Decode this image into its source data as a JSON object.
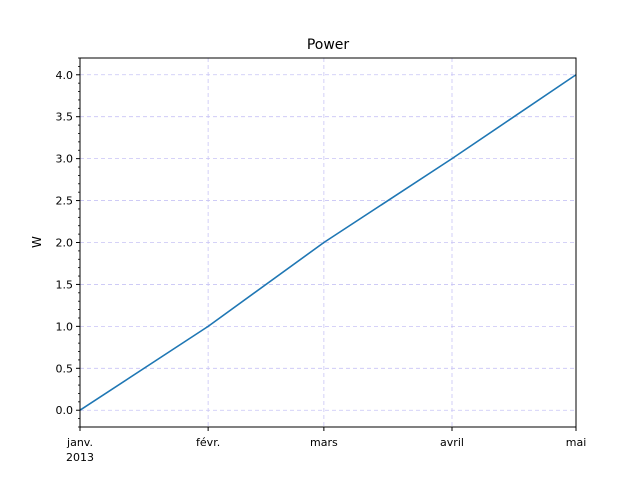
{
  "chart_data": {
    "type": "line",
    "title": "Power",
    "xlabel": "",
    "ylabel": "W",
    "x": [
      "2013-01-01",
      "2013-02-01",
      "2013-03-01",
      "2013-04-01",
      "2013-05-01"
    ],
    "x_tick_labels": [
      "janv.",
      "févr.",
      "mars",
      "avril",
      "mai"
    ],
    "x_tick_sublabel": "2013",
    "series": [
      {
        "values": [
          0,
          1,
          2,
          3,
          4
        ],
        "color": "#1f77b4"
      }
    ],
    "ylim": [
      -0.2,
      4.2
    ],
    "y_ticks": [
      0.0,
      0.5,
      1.0,
      1.5,
      2.0,
      2.5,
      3.0,
      3.5,
      4.0
    ],
    "grid": true,
    "grid_color": "#c8c4f5"
  }
}
